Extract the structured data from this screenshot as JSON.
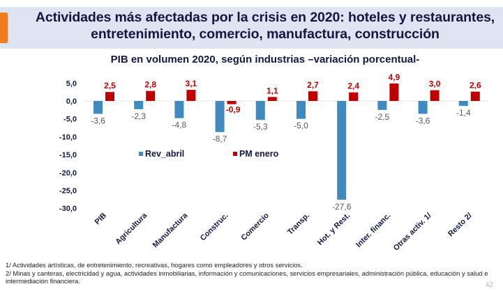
{
  "slide": {
    "title_line1": "Actividades más afectadas por la crisis en 2020: hoteles y restaurantes,",
    "title_line2": "entretenimiento, comercio, manufactura, construcción",
    "accent_color": "#f07c22",
    "page_number": "42"
  },
  "footnotes": [
    "1/ Actividades artísticas, de entretenimiento, recreativas, hogares como empleadores y otros servicios.",
    "2/ Minas y canteras, electricidad y agua, actividades inmobiliarias, información y comunicaciones, servicios empresariales, administración pública, educación y salud e intermediación financiera."
  ],
  "chart_data": {
    "type": "bar",
    "title": "PIB en volumen 2020, según industrias –variación porcentual-",
    "xlabel": "",
    "ylabel": "",
    "ylim": [
      -30,
      5
    ],
    "yticks": [
      5,
      0,
      -5,
      -10,
      -15,
      -20,
      -25,
      -30
    ],
    "ytick_labels": [
      "5,0",
      "0,0",
      "-5,0",
      "-10,0",
      "-15,0",
      "-20,0",
      "-25,0",
      "-30,0"
    ],
    "grid": false,
    "legend_position": "center",
    "categories": [
      "PIB",
      "Agricultura",
      "Manufactura",
      "Construc.",
      "Comercio",
      "Transp.",
      "Hot. y Rest.",
      "Inter. financ.",
      "Otras activ. 1/",
      "Resto 2/"
    ],
    "series": [
      {
        "name": "Rev_abril",
        "color": "#3f8bbf",
        "label_color": "#595959",
        "values": [
          -3.6,
          -2.3,
          -4.8,
          -8.7,
          -5.3,
          -5.0,
          -27.6,
          -2.5,
          -3.6,
          -1.4
        ],
        "labels": [
          "-3,6",
          "-2,3",
          "-4,8",
          "-8,7",
          "-5,3",
          "-5,0",
          "-27,6",
          "-2,5",
          "-3,6",
          "-1,4"
        ]
      },
      {
        "name": "PM enero",
        "color": "#c00000",
        "label_color": "#c00000",
        "values": [
          2.5,
          2.8,
          3.1,
          -0.9,
          1.1,
          2.7,
          2.4,
          4.9,
          3.0,
          2.6
        ],
        "labels": [
          "2,5",
          "2,8",
          "3,1",
          "-0,9",
          "1,1",
          "2,7",
          "2,4",
          "4,9",
          "3,0",
          "2,6"
        ]
      }
    ]
  }
}
